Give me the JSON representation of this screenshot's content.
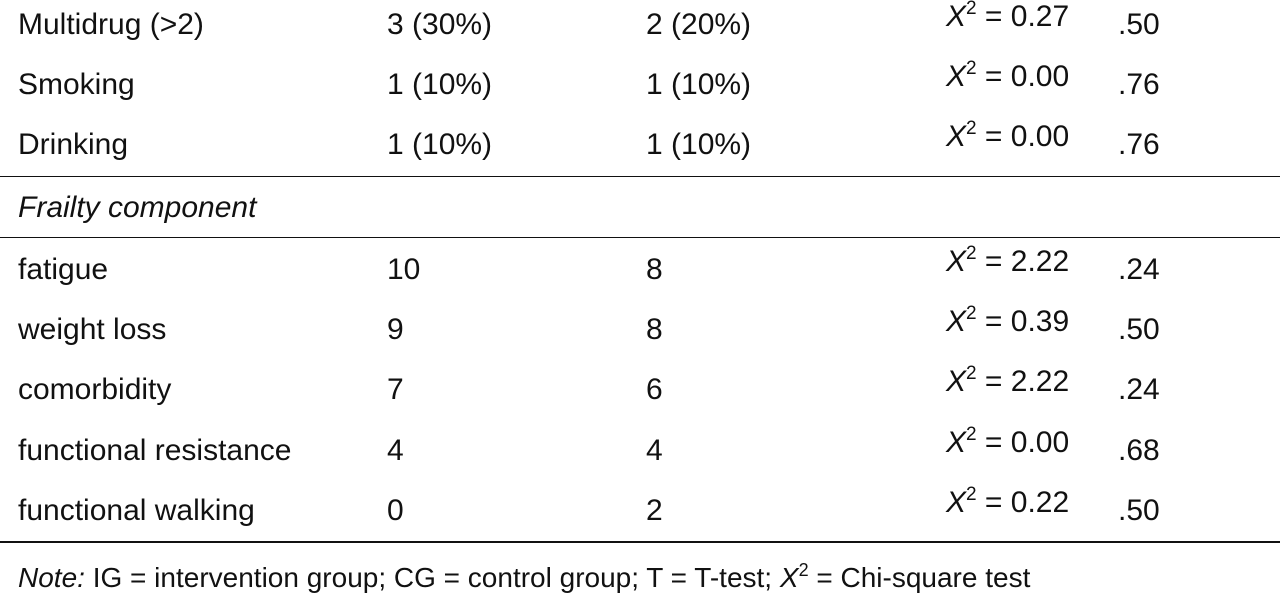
{
  "section1": {
    "rows": [
      {
        "label": "Multidrug (>2)",
        "ig": "3 (30%)",
        "cg": "2 (20%)",
        "test_symbol": "X",
        "test_sup": "2",
        "test_value": " = 0.27",
        "p": ".50"
      },
      {
        "label": "Smoking",
        "ig": "1 (10%)",
        "cg": "1 (10%)",
        "test_symbol": "X",
        "test_sup": "2",
        "test_value": " = 0.00",
        "p": ".76"
      },
      {
        "label": "Drinking",
        "ig": "1 (10%)",
        "cg": "1 (10%)",
        "test_symbol": "X",
        "test_sup": "2",
        "test_value": " = 0.00",
        "p": ".76"
      }
    ]
  },
  "section2": {
    "title": "Frailty component",
    "rows": [
      {
        "label": "fatigue",
        "ig": "10",
        "cg": "8",
        "test_symbol": "X",
        "test_sup": "2",
        "test_value": " = 2.22",
        "p": ".24"
      },
      {
        "label": "weight loss",
        "ig": "9",
        "cg": "8",
        "test_symbol": "X",
        "test_sup": "2",
        "test_value": " = 0.39",
        "p": ".50"
      },
      {
        "label": "comorbidity",
        "ig": "7",
        "cg": "6",
        "test_symbol": "X",
        "test_sup": "2",
        "test_value": " = 2.22",
        "p": ".24"
      },
      {
        "label": "functional resistance",
        "ig": "4",
        "cg": "4",
        "test_symbol": "X",
        "test_sup": "2",
        "test_value": " = 0.00",
        "p": ".68"
      },
      {
        "label": "functional walking",
        "ig": "0",
        "cg": "2",
        "test_symbol": "X",
        "test_sup": "2",
        "test_value": " = 0.22",
        "p": ".50"
      }
    ]
  },
  "note": {
    "label": "Note:",
    "text_before": " IG = intervention group; CG = control group; T = T-test; ",
    "symbol": "X",
    "sup": "2",
    "text_after": " = Chi-square test"
  }
}
